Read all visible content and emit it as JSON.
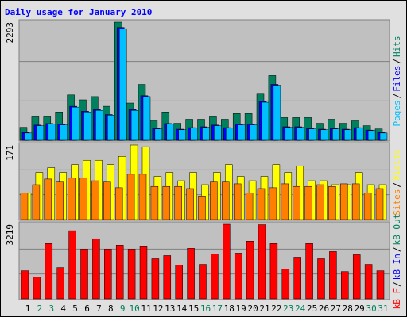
{
  "chart_data": [
    {
      "type": "bar",
      "title": "Daily usage for January 2010",
      "series": [
        {
          "name": "Pages",
          "color": "#00c0ff",
          "values": [
            141,
            283,
            314,
            298,
            644,
            550,
            581,
            487,
            2167,
            581,
            848,
            220,
            314,
            204,
            236,
            251,
            283,
            236,
            298,
            298,
            738,
            1068,
            251,
            251,
            220,
            204,
            220,
            204,
            236,
            188,
            141
          ]
        },
        {
          "name": "Files",
          "color": "#0000ff",
          "values": [
            150,
            295,
            325,
            310,
            660,
            565,
            595,
            500,
            2190,
            595,
            865,
            230,
            325,
            215,
            245,
            262,
            295,
            245,
            310,
            310,
            755,
            1085,
            262,
            262,
            230,
            215,
            230,
            215,
            245,
            198,
            150
          ]
        },
        {
          "name": "Hits",
          "color": "#00805c",
          "values": [
            251,
            455,
            455,
            550,
            880,
            785,
            848,
            660,
            2293,
            723,
            1084,
            377,
            550,
            330,
            408,
            408,
            455,
            408,
            518,
            518,
            911,
            1256,
            440,
            440,
            440,
            330,
            408,
            330,
            377,
            283,
            220
          ]
        }
      ],
      "ylim": [
        0,
        2293
      ],
      "yticks": [
        2293
      ],
      "grid": true
    },
    {
      "type": "bar",
      "series": [
        {
          "name": "Sites",
          "color": "#ff8000",
          "values": [
            61,
            80,
            93,
            86,
            95,
            95,
            89,
            86,
            73,
            104,
            104,
            76,
            76,
            76,
            71,
            54,
            86,
            86,
            82,
            61,
            71,
            73,
            82,
            76,
            76,
            80,
            76,
            82,
            82,
            61,
            71
          ]
        },
        {
          "name": "Visits",
          "color": "#ffff00",
          "values": [
            61,
            108,
            119,
            108,
            126,
            136,
            136,
            126,
            145,
            171,
            167,
            99,
            108,
            89,
            108,
            80,
            108,
            126,
            99,
            89,
            99,
            126,
            108,
            123,
            89,
            89,
            80,
            80,
            108,
            80,
            80
          ]
        }
      ],
      "ylim": [
        0,
        171
      ],
      "yticks": [
        171
      ],
      "grid": true
    },
    {
      "type": "bar",
      "series": [
        {
          "name": "kB F",
          "color": "#ff0000",
          "values": [
            1211,
            934,
            2387,
            1349,
            2941,
            2145,
            2595,
            2145,
            2318,
            2145,
            2249,
            1730,
            1868,
            1453,
            2180,
            1488,
            1938,
            3219,
            1972,
            2491,
            3200,
            2387,
            1280,
            1799,
            2387,
            1730,
            2041,
            1176,
            1903,
            1488,
            1211
          ]
        },
        {
          "name": "kB In",
          "color": "#0000ff"
        },
        {
          "name": "kB Out",
          "color": "#00805c"
        }
      ],
      "ylim": [
        0,
        3219
      ],
      "yticks": [
        3219
      ],
      "grid": true,
      "categories": [
        "1",
        "2",
        "3",
        "4",
        "5",
        "6",
        "7",
        "8",
        "9",
        "10",
        "11",
        "12",
        "13",
        "14",
        "15",
        "16",
        "17",
        "18",
        "19",
        "20",
        "21",
        "22",
        "23",
        "24",
        "25",
        "26",
        "27",
        "28",
        "29",
        "30",
        "31"
      ],
      "category_colors": [
        "#000000",
        "#00805c",
        "#00805c",
        "#000000",
        "#000000",
        "#000000",
        "#000000",
        "#000000",
        "#00805c",
        "#00805c",
        "#000000",
        "#000000",
        "#000000",
        "#000000",
        "#000000",
        "#00805c",
        "#00805c",
        "#000000",
        "#000000",
        "#000000",
        "#000000",
        "#000000",
        "#00805c",
        "#00805c",
        "#000000",
        "#000000",
        "#000000",
        "#000000",
        "#000000",
        "#00805c",
        "#00805c"
      ]
    }
  ],
  "legend_separator": "/"
}
